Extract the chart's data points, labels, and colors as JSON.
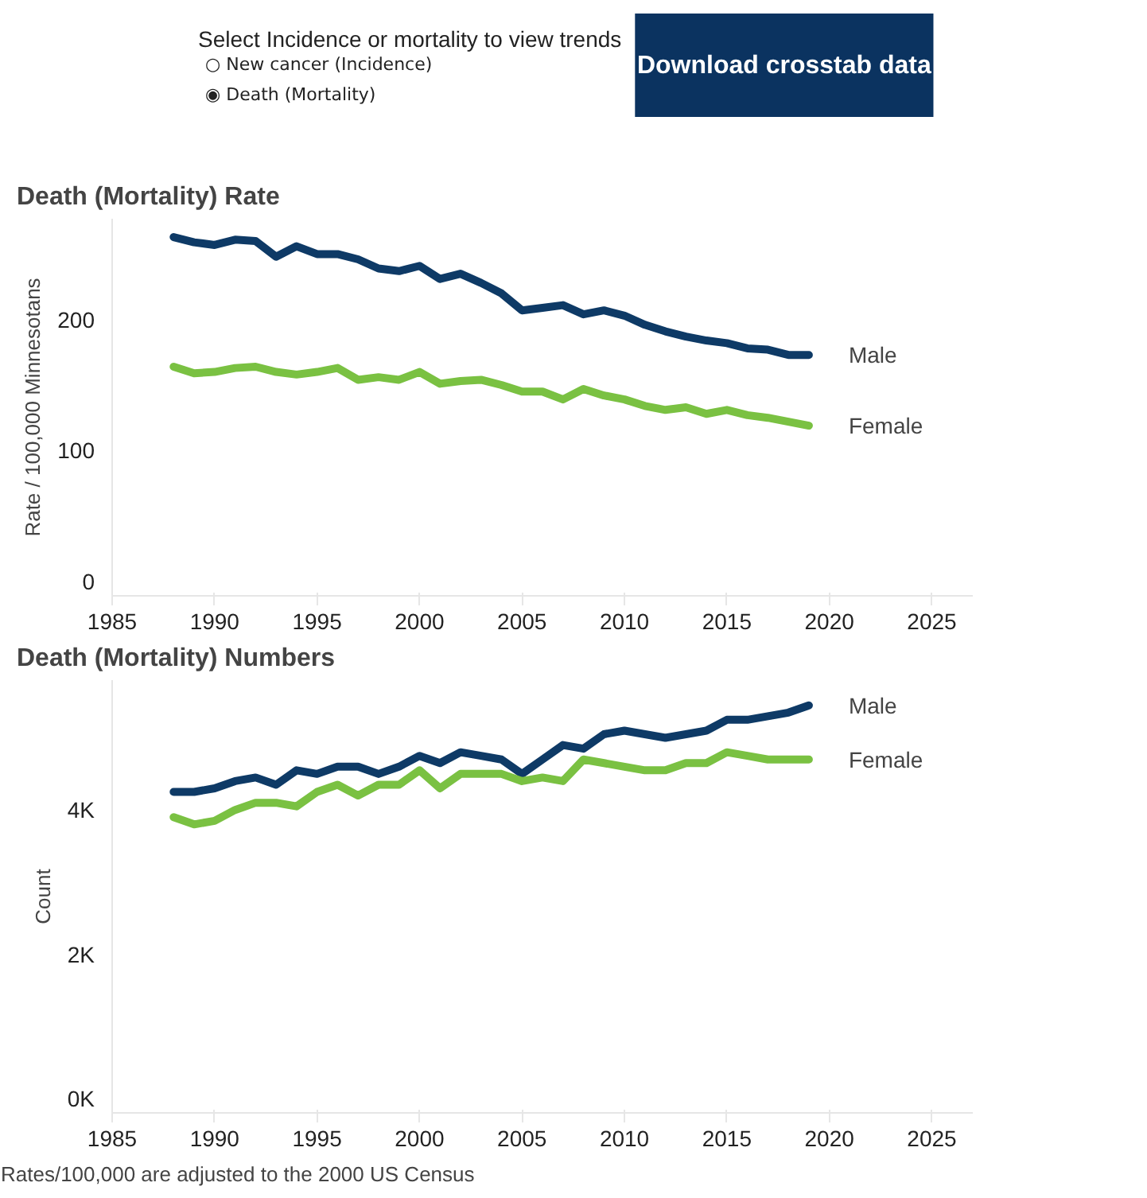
{
  "chart_data": [
    {
      "type": "other",
      "title": "Select Incidence or mortality to view trends",
      "annotations": [
        "○ New cancer (Incidence)",
        "◉ Death (Mortality)",
        "Download crosstab data"
      ]
    },
    {
      "type": "line",
      "title": "Death (Mortality) Rate",
      "ylabel": "Rate / 100,000 Minnesotans",
      "x": [
        1988,
        1989,
        1990,
        1991,
        1992,
        1993,
        1994,
        1995,
        1996,
        1997,
        1998,
        1999,
        2000,
        2001,
        2002,
        2003,
        2004,
        2005,
        2006,
        2007,
        2008,
        2009,
        2010,
        2011,
        2012,
        2013,
        2014,
        2015,
        2016,
        2017,
        2018,
        2019
      ],
      "series": [
        {
          "name": "Male",
          "color": "#0e3a66",
          "values": [
            263,
            259,
            257,
            261,
            260,
            248,
            256,
            250,
            250,
            246,
            239,
            237,
            241,
            231,
            235,
            228,
            220,
            207,
            209,
            211,
            204,
            207,
            203,
            196,
            191,
            187,
            184,
            182,
            178,
            177,
            173,
            173
          ]
        },
        {
          "name": "Female",
          "color": "#7ac142",
          "values": [
            164,
            159,
            160,
            163,
            164,
            160,
            158,
            160,
            163,
            154,
            156,
            154,
            160,
            151,
            153,
            154,
            150,
            145,
            145,
            139,
            147,
            142,
            139,
            134,
            131,
            133,
            128,
            131,
            127,
            125,
            122,
            119
          ]
        }
      ],
      "xlim": [
        1985,
        2027
      ],
      "xticks": [
        1985,
        1990,
        1995,
        2000,
        2005,
        2010,
        2015,
        2020,
        2025
      ],
      "ylim": [
        -11,
        277
      ],
      "yticks": [
        0,
        100,
        200
      ],
      "grid": false
    },
    {
      "type": "line",
      "title": "Death (Mortality) Numbers",
      "ylabel": "Count",
      "x": [
        1988,
        1989,
        1990,
        1991,
        1992,
        1993,
        1994,
        1995,
        1996,
        1997,
        1998,
        1999,
        2000,
        2001,
        2002,
        2003,
        2004,
        2005,
        2006,
        2007,
        2008,
        2009,
        2010,
        2011,
        2012,
        2013,
        2014,
        2015,
        2016,
        2017,
        2018,
        2019
      ],
      "series": [
        {
          "name": "Male",
          "color": "#0e3a66",
          "values": [
            4250,
            4250,
            4300,
            4400,
            4450,
            4350,
            4550,
            4500,
            4600,
            4600,
            4500,
            4600,
            4750,
            4650,
            4800,
            4750,
            4700,
            4500,
            4700,
            4900,
            4850,
            5050,
            5100,
            5050,
            5000,
            5050,
            5100,
            5250,
            5250,
            5300,
            5350,
            5450
          ]
        },
        {
          "name": "Female",
          "color": "#7ac142",
          "values": [
            3900,
            3800,
            3850,
            4000,
            4100,
            4100,
            4050,
            4250,
            4350,
            4200,
            4350,
            4350,
            4550,
            4300,
            4500,
            4500,
            4500,
            4400,
            4450,
            4400,
            4700,
            4650,
            4600,
            4550,
            4550,
            4650,
            4650,
            4800,
            4750,
            4700,
            4700,
            4700
          ]
        }
      ],
      "xlim": [
        1985,
        2027
      ],
      "xticks": [
        1985,
        1990,
        1995,
        2000,
        2005,
        2010,
        2015,
        2020,
        2025
      ],
      "ylim": [
        -200,
        5800
      ],
      "yticks": [
        {
          "value": 0,
          "label": "0K"
        },
        {
          "value": 2000,
          "label": "2K"
        },
        {
          "value": 4000,
          "label": "4K"
        }
      ],
      "grid": false,
      "annotations": [
        "Rates/100,000 are adjusted to the 2000 US Census"
      ]
    }
  ]
}
